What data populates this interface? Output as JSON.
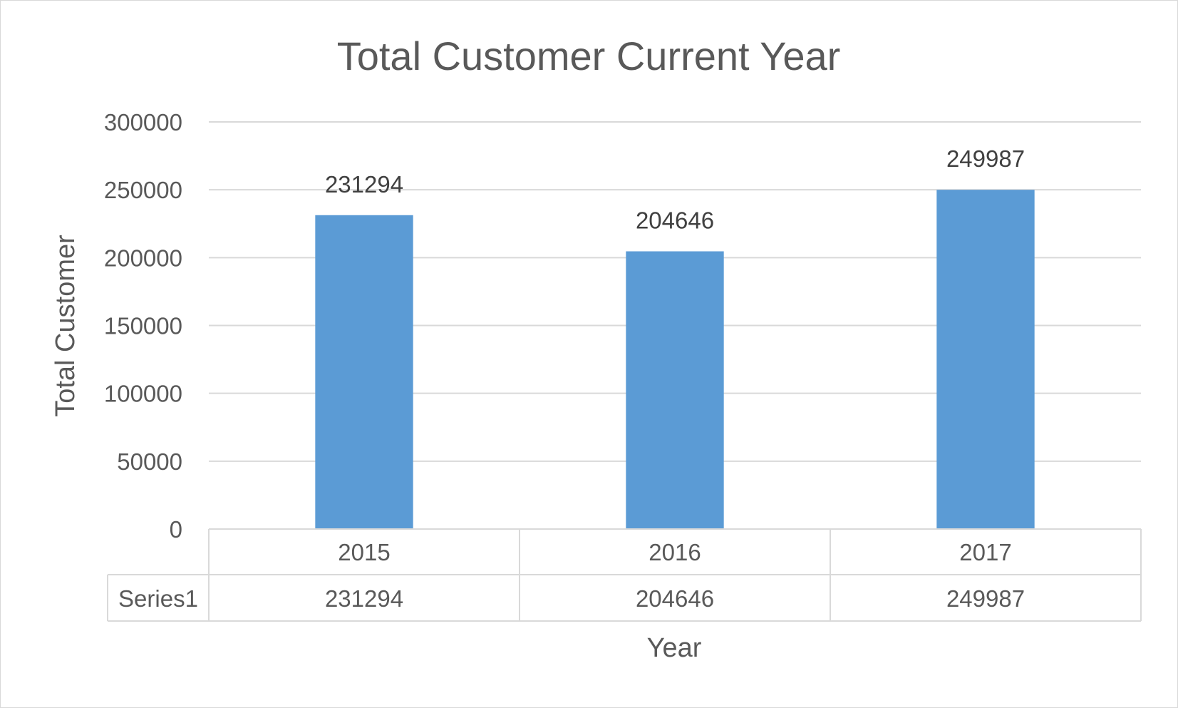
{
  "chart_data": {
    "type": "bar",
    "title": "Total Customer Current Year",
    "xlabel": "Year",
    "ylabel": "Total Customer",
    "categories": [
      "2015",
      "2016",
      "2017"
    ],
    "series": [
      {
        "name": "Series1",
        "values": [
          231294,
          204646,
          249987
        ],
        "color": "#5b9bd5"
      }
    ],
    "ylim": [
      0,
      300000
    ],
    "yticks": [
      "0",
      "50000",
      "100000",
      "150000",
      "200000",
      "250000",
      "300000"
    ],
    "data_labels": [
      "231294",
      "204646",
      "249987"
    ],
    "grid": true,
    "legend": "data-table",
    "data_table": {
      "row_label": "Series1",
      "cells": [
        "231294",
        "204646",
        "249987"
      ]
    }
  }
}
